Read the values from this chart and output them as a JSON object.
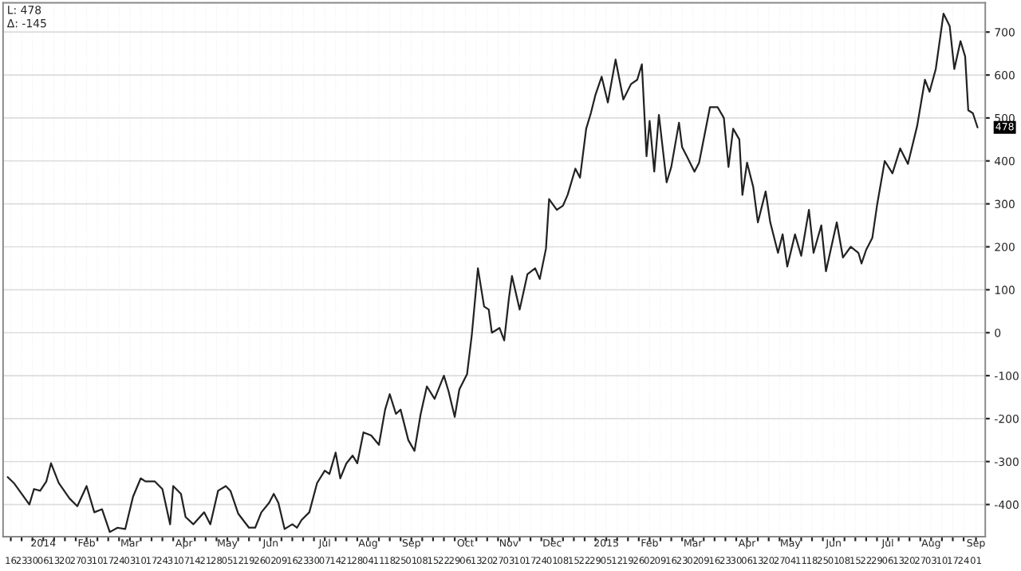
{
  "chart_data": {
    "type": "line",
    "annotations": [
      "L: 478",
      "Δ: -145",
      {
        "text": "478",
        "x": "2015-09-02",
        "y": 478
      }
    ],
    "xlim": [
      "2013-12-11",
      "2015-09-07"
    ],
    "ylim": [
      -475,
      768
    ],
    "yticks": [
      -400,
      -300,
      -200,
      -100,
      0,
      100,
      200,
      300,
      400,
      500,
      600,
      700
    ],
    "x2ticks": [
      {
        "value": "2014-01-06",
        "label": "2014"
      },
      {
        "value": "2014-02-03",
        "label": "Feb"
      },
      {
        "value": "2014-03-03",
        "label": "Mar"
      },
      {
        "value": "2014-04-07",
        "label": "Apr"
      },
      {
        "value": "2014-05-05",
        "label": "May"
      },
      {
        "value": "2014-06-02",
        "label": "Jun"
      },
      {
        "value": "2014-07-07",
        "label": "Jul"
      },
      {
        "value": "2014-08-04",
        "label": "Aug"
      },
      {
        "value": "2014-09-01",
        "label": "Sep"
      },
      {
        "value": "2014-10-06",
        "label": "Oct"
      },
      {
        "value": "2014-11-03",
        "label": "Nov"
      },
      {
        "value": "2014-12-01",
        "label": "Dec"
      },
      {
        "value": "2015-01-05",
        "label": "2015"
      },
      {
        "value": "2015-02-02",
        "label": "Feb"
      },
      {
        "value": "2015-03-02",
        "label": "Mar"
      },
      {
        "value": "2015-04-06",
        "label": "Apr"
      },
      {
        "value": "2015-05-04",
        "label": "May"
      },
      {
        "value": "2015-06-01",
        "label": "Jun"
      },
      {
        "value": "2015-07-06",
        "label": "Jul"
      },
      {
        "value": "2015-08-03",
        "label": "Aug"
      },
      {
        "value": "2015-09-01",
        "label": "Sep"
      }
    ],
    "x2lim": [
      "2013-12-11",
      "2015-09-07"
    ],
    "xticks": [
      {
        "value": "2013-12-16",
        "label": "16"
      },
      {
        "value": "2013-12-23",
        "label": "23"
      },
      {
        "value": "2013-12-30",
        "label": "30"
      },
      {
        "value": "2014-01-06",
        "label": "06"
      },
      {
        "value": "2014-01-13",
        "label": "13"
      },
      {
        "value": "2014-01-20",
        "label": "20"
      },
      {
        "value": "2014-01-27",
        "label": "27"
      },
      {
        "value": "2014-02-03",
        "label": "03"
      },
      {
        "value": "2014-02-10",
        "label": "10"
      },
      {
        "value": "2014-02-17",
        "label": "17"
      },
      {
        "value": "2014-02-24",
        "label": "24"
      },
      {
        "value": "2014-03-03",
        "label": "03"
      },
      {
        "value": "2014-03-10",
        "label": "10"
      },
      {
        "value": "2014-03-17",
        "label": "17"
      },
      {
        "value": "2014-03-24",
        "label": "24"
      },
      {
        "value": "2014-03-31",
        "label": "31"
      },
      {
        "value": "2014-04-07",
        "label": "07"
      },
      {
        "value": "2014-04-14",
        "label": "14"
      },
      {
        "value": "2014-04-21",
        "label": "21"
      },
      {
        "value": "2014-04-28",
        "label": "28"
      },
      {
        "value": "2014-05-05",
        "label": "05"
      },
      {
        "value": "2014-05-12",
        "label": "12"
      },
      {
        "value": "2014-05-19",
        "label": "19"
      },
      {
        "value": "2014-05-26",
        "label": "26"
      },
      {
        "value": "2014-06-02",
        "label": "02"
      },
      {
        "value": "2014-06-09",
        "label": "09"
      },
      {
        "value": "2014-06-16",
        "label": "16"
      },
      {
        "value": "2014-06-23",
        "label": "23"
      },
      {
        "value": "2014-06-30",
        "label": "30"
      },
      {
        "value": "2014-07-07",
        "label": "07"
      },
      {
        "value": "2014-07-14",
        "label": "14"
      },
      {
        "value": "2014-07-21",
        "label": "21"
      },
      {
        "value": "2014-07-28",
        "label": "28"
      },
      {
        "value": "2014-08-04",
        "label": "04"
      },
      {
        "value": "2014-08-11",
        "label": "11"
      },
      {
        "value": "2014-08-18",
        "label": "18"
      },
      {
        "value": "2014-08-25",
        "label": "25"
      },
      {
        "value": "2014-09-01",
        "label": "01"
      },
      {
        "value": "2014-09-08",
        "label": "08"
      },
      {
        "value": "2014-09-15",
        "label": "15"
      },
      {
        "value": "2014-09-22",
        "label": "22"
      },
      {
        "value": "2014-09-29",
        "label": "29"
      },
      {
        "value": "2014-10-06",
        "label": "06"
      },
      {
        "value": "2014-10-13",
        "label": "13"
      },
      {
        "value": "2014-10-20",
        "label": "20"
      },
      {
        "value": "2014-10-27",
        "label": "27"
      },
      {
        "value": "2014-11-03",
        "label": "03"
      },
      {
        "value": "2014-11-10",
        "label": "10"
      },
      {
        "value": "2014-11-17",
        "label": "17"
      },
      {
        "value": "2014-11-24",
        "label": "24"
      },
      {
        "value": "2014-12-01",
        "label": "01"
      },
      {
        "value": "2014-12-08",
        "label": "08"
      },
      {
        "value": "2014-12-15",
        "label": "15"
      },
      {
        "value": "2014-12-22",
        "label": "22"
      },
      {
        "value": "2014-12-29",
        "label": "29"
      },
      {
        "value": "2015-01-05",
        "label": "05"
      },
      {
        "value": "2015-01-12",
        "label": "12"
      },
      {
        "value": "2015-01-19",
        "label": "19"
      },
      {
        "value": "2015-01-26",
        "label": "26"
      },
      {
        "value": "2015-02-02",
        "label": "02"
      },
      {
        "value": "2015-02-09",
        "label": "09"
      },
      {
        "value": "2015-02-16",
        "label": "16"
      },
      {
        "value": "2015-02-23",
        "label": "23"
      },
      {
        "value": "2015-03-02",
        "label": "02"
      },
      {
        "value": "2015-03-09",
        "label": "09"
      },
      {
        "value": "2015-03-16",
        "label": "16"
      },
      {
        "value": "2015-03-23",
        "label": "23"
      },
      {
        "value": "2015-03-30",
        "label": "30"
      },
      {
        "value": "2015-04-06",
        "label": "06"
      },
      {
        "value": "2015-04-13",
        "label": "13"
      },
      {
        "value": "2015-04-20",
        "label": "20"
      },
      {
        "value": "2015-04-27",
        "label": "27"
      },
      {
        "value": "2015-05-04",
        "label": "04"
      },
      {
        "value": "2015-05-11",
        "label": "11"
      },
      {
        "value": "2015-05-18",
        "label": "18"
      },
      {
        "value": "2015-05-25",
        "label": "25"
      },
      {
        "value": "2015-06-01",
        "label": "01"
      },
      {
        "value": "2015-06-08",
        "label": "08"
      },
      {
        "value": "2015-06-15",
        "label": "15"
      },
      {
        "value": "2015-06-22",
        "label": "22"
      },
      {
        "value": "2015-06-29",
        "label": "29"
      },
      {
        "value": "2015-07-06",
        "label": "06"
      },
      {
        "value": "2015-07-13",
        "label": "13"
      },
      {
        "value": "2015-07-20",
        "label": "20"
      },
      {
        "value": "2015-07-27",
        "label": "27"
      },
      {
        "value": "2015-08-03",
        "label": "03"
      },
      {
        "value": "2015-08-10",
        "label": "10"
      },
      {
        "value": "2015-08-17",
        "label": "17"
      },
      {
        "value": "2015-08-24",
        "label": "24"
      },
      {
        "value": "2015-09-01",
        "label": "01"
      }
    ],
    "grid": true,
    "legend": false,
    "marker": "none",
    "line_style": "solid",
    "x": [
      "2013-12-14",
      "2013-12-18",
      "2013-12-23",
      "2013-12-28",
      "2013-12-31",
      "2014-01-04",
      "2014-01-08",
      "2014-01-11",
      "2014-01-16",
      "2014-01-23",
      "2014-01-28",
      "2014-02-03",
      "2014-02-08",
      "2014-02-13",
      "2014-02-18",
      "2014-02-23",
      "2014-02-28",
      "2014-03-05",
      "2014-03-10",
      "2014-03-13",
      "2014-03-19",
      "2014-03-24",
      "2014-03-29",
      "2014-03-31",
      "2014-04-05",
      "2014-04-08",
      "2014-04-13",
      "2014-04-20",
      "2014-04-24",
      "2014-04-29",
      "2014-05-04",
      "2014-05-07",
      "2014-05-12",
      "2014-05-19",
      "2014-05-23",
      "2014-05-27",
      "2014-06-01",
      "2014-06-04",
      "2014-06-07",
      "2014-06-11",
      "2014-06-16",
      "2014-06-19",
      "2014-06-22",
      "2014-06-27",
      "2014-07-02",
      "2014-07-07",
      "2014-07-10",
      "2014-07-14",
      "2014-07-17",
      "2014-07-21",
      "2014-07-25",
      "2014-07-28",
      "2014-08-01",
      "2014-08-06",
      "2014-08-11",
      "2014-08-15",
      "2014-08-18",
      "2014-08-22",
      "2014-08-25",
      "2014-08-30",
      "2014-09-03",
      "2014-09-07",
      "2014-09-11",
      "2014-09-16",
      "2014-09-22",
      "2014-09-25",
      "2014-09-29",
      "2014-10-02",
      "2014-10-07",
      "2014-10-10",
      "2014-10-14",
      "2014-10-18",
      "2014-10-21",
      "2014-10-23",
      "2014-10-28",
      "2014-10-31",
      "2014-11-03",
      "2014-11-05",
      "2014-11-10",
      "2014-11-15",
      "2014-11-20",
      "2014-11-23",
      "2014-11-27",
      "2014-11-29",
      "2014-12-04",
      "2014-12-08",
      "2014-12-11",
      "2014-12-16",
      "2014-12-19",
      "2014-12-23",
      "2014-12-26",
      "2014-12-29",
      "2015-01-02",
      "2015-01-06",
      "2015-01-11",
      "2015-01-16",
      "2015-01-21",
      "2015-01-25",
      "2015-01-28",
      "2015-01-31",
      "2015-02-02",
      "2015-02-05",
      "2015-02-08",
      "2015-02-13",
      "2015-02-16",
      "2015-02-21",
      "2015-02-23",
      "2015-02-26",
      "2015-03-03",
      "2015-03-06",
      "2015-03-13",
      "2015-03-18",
      "2015-03-22",
      "2015-03-25",
      "2015-03-28",
      "2015-04-01",
      "2015-04-03",
      "2015-04-06",
      "2015-04-10",
      "2015-04-13",
      "2015-04-18",
      "2015-04-21",
      "2015-04-26",
      "2015-04-29",
      "2015-05-02",
      "2015-05-07",
      "2015-05-11",
      "2015-05-16",
      "2015-05-19",
      "2015-05-24",
      "2015-05-27",
      "2015-06-03",
      "2015-06-07",
      "2015-06-12",
      "2015-06-17",
      "2015-06-19",
      "2015-06-22",
      "2015-06-26",
      "2015-06-29",
      "2015-07-04",
      "2015-07-09",
      "2015-07-14",
      "2015-07-19",
      "2015-07-25",
      "2015-07-30",
      "2015-08-02",
      "2015-08-06",
      "2015-08-11",
      "2015-08-15",
      "2015-08-18",
      "2015-08-22",
      "2015-08-25",
      "2015-08-27",
      "2015-08-30",
      "2015-09-02"
    ],
    "series": [
      {
        "color": "#222222",
        "values": [
          -336,
          -350,
          -375,
          -400,
          -364,
          -368,
          -346,
          -304,
          -350,
          -386,
          -404,
          -357,
          -418,
          -411,
          -464,
          -454,
          -457,
          -382,
          -339,
          -346,
          -346,
          -364,
          -446,
          -357,
          -375,
          -429,
          -446,
          -418,
          -446,
          -368,
          -357,
          -368,
          -421,
          -454,
          -454,
          -418,
          -396,
          -375,
          -396,
          -457,
          -446,
          -454,
          -436,
          -418,
          -350,
          -321,
          -329,
          -279,
          -339,
          -304,
          -286,
          -304,
          -232,
          -239,
          -261,
          -179,
          -143,
          -189,
          -179,
          -250,
          -275,
          -189,
          -125,
          -154,
          -100,
          -136,
          -196,
          -132,
          -96,
          -7,
          150,
          61,
          54,
          0,
          11,
          -18,
          79,
          132,
          54,
          136,
          150,
          125,
          196,
          311,
          286,
          296,
          321,
          382,
          361,
          475,
          511,
          554,
          596,
          536,
          636,
          543,
          579,
          589,
          625,
          411,
          493,
          375,
          507,
          350,
          386,
          489,
          432,
          411,
          375,
          396,
          525,
          525,
          500,
          386,
          475,
          450,
          321,
          396,
          339,
          257,
          329,
          257,
          186,
          229,
          154,
          229,
          179,
          286,
          186,
          250,
          143,
          257,
          175,
          200,
          186,
          161,
          193,
          221,
          296,
          400,
          371,
          429,
          393,
          482,
          589,
          561,
          614,
          743,
          714,
          614,
          679,
          643,
          518,
          511,
          478
        ]
      }
    ]
  }
}
